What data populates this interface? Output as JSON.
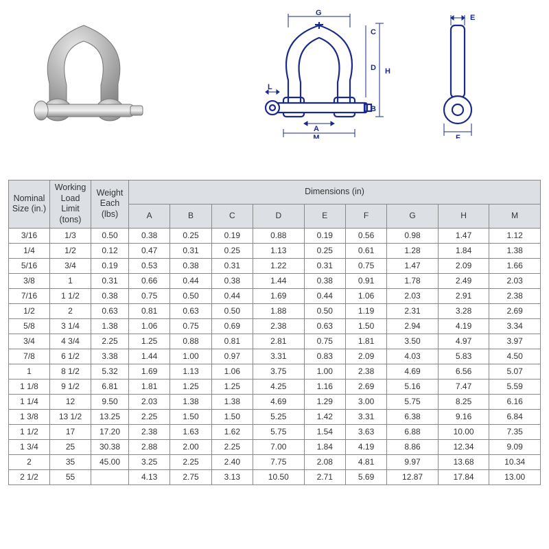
{
  "table": {
    "header_bg": "#dcdfe3",
    "border_color": "#888888",
    "text_color": "#333333",
    "font_size_body": 12,
    "font_size_header": 13,
    "col1": "Nominal Size (in.)",
    "col2": "Working Load Limit (tons)",
    "col3": "Weight Each (lbs)",
    "dim_header": "Dimensions (in)",
    "dim_cols": [
      "A",
      "B",
      "C",
      "D",
      "E",
      "F",
      "G",
      "H",
      "M"
    ],
    "rows": [
      [
        "3/16",
        "1/3",
        "0.50",
        "0.38",
        "0.25",
        "0.19",
        "0.88",
        "0.19",
        "0.56",
        "0.98",
        "1.47",
        "1.12"
      ],
      [
        "1/4",
        "1/2",
        "0.12",
        "0.47",
        "0.31",
        "0.25",
        "1.13",
        "0.25",
        "0.61",
        "1.28",
        "1.84",
        "1.38"
      ],
      [
        "5/16",
        "3/4",
        "0.19",
        "0.53",
        "0.38",
        "0.31",
        "1.22",
        "0.31",
        "0.75",
        "1.47",
        "2.09",
        "1.66"
      ],
      [
        "3/8",
        "1",
        "0.31",
        "0.66",
        "0.44",
        "0.38",
        "1.44",
        "0.38",
        "0.91",
        "1.78",
        "2.49",
        "2.03"
      ],
      [
        "7/16",
        "1 1/2",
        "0.38",
        "0.75",
        "0.50",
        "0.44",
        "1.69",
        "0.44",
        "1.06",
        "2.03",
        "2.91",
        "2.38"
      ],
      [
        "1/2",
        "2",
        "0.63",
        "0.81",
        "0.63",
        "0.50",
        "1.88",
        "0.50",
        "1.19",
        "2.31",
        "3.28",
        "2.69"
      ],
      [
        "5/8",
        "3 1/4",
        "1.38",
        "1.06",
        "0.75",
        "0.69",
        "2.38",
        "0.63",
        "1.50",
        "2.94",
        "4.19",
        "3.34"
      ],
      [
        "3/4",
        "4 3/4",
        "2.25",
        "1.25",
        "0.88",
        "0.81",
        "2.81",
        "0.75",
        "1.81",
        "3.50",
        "4.97",
        "3.97"
      ],
      [
        "7/8",
        "6 1/2",
        "3.38",
        "1.44",
        "1.00",
        "0.97",
        "3.31",
        "0.83",
        "2.09",
        "4.03",
        "5.83",
        "4.50"
      ],
      [
        "1",
        "8 1/2",
        "5.32",
        "1.69",
        "1.13",
        "1.06",
        "3.75",
        "1.00",
        "2.38",
        "4.69",
        "6.56",
        "5.07"
      ],
      [
        "1 1/8",
        "9 1/2",
        "6.81",
        "1.81",
        "1.25",
        "1.25",
        "4.25",
        "1.16",
        "2.69",
        "5.16",
        "7.47",
        "5.59"
      ],
      [
        "1 1/4",
        "12",
        "9.50",
        "2.03",
        "1.38",
        "1.38",
        "4.69",
        "1.29",
        "3.00",
        "5.75",
        "8.25",
        "6.16"
      ],
      [
        "1 3/8",
        "13 1/2",
        "13.25",
        "2.25",
        "1.50",
        "1.50",
        "5.25",
        "1.42",
        "3.31",
        "6.38",
        "9.16",
        "6.84"
      ],
      [
        "1 1/2",
        "17",
        "17.20",
        "2.38",
        "1.63",
        "1.62",
        "5.75",
        "1.54",
        "3.63",
        "6.88",
        "10.00",
        "7.35"
      ],
      [
        "1 3/4",
        "25",
        "30.38",
        "2.88",
        "2.00",
        "2.25",
        "7.00",
        "1.84",
        "4.19",
        "8.86",
        "12.34",
        "9.09"
      ],
      [
        "2",
        "35",
        "45.00",
        "3.25",
        "2.25",
        "2.40",
        "7.75",
        "2.08",
        "4.81",
        "9.97",
        "13.68",
        "10.34"
      ],
      [
        "2 1/2",
        "55",
        "",
        "4.13",
        "2.75",
        "3.13",
        "10.50",
        "2.71",
        "5.69",
        "12.87",
        "17.84",
        "13.00"
      ]
    ]
  },
  "diagram": {
    "line_color": "#1a2a8a",
    "labels": {
      "A": "A",
      "B": "B",
      "C": "C",
      "D": "D",
      "E": "E",
      "F": "F",
      "G": "G",
      "H": "H",
      "L": "L",
      "M": "M"
    }
  }
}
